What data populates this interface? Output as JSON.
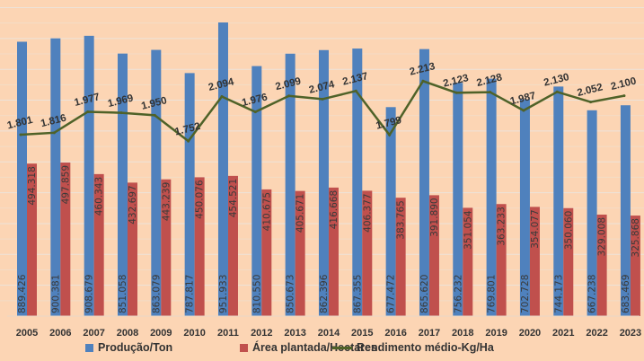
{
  "chart_data": {
    "type": "bar",
    "title": "",
    "categories": [
      "2005",
      "2006",
      "2007",
      "2008",
      "2009",
      "2010",
      "2011",
      "2012",
      "2013",
      "2014",
      "2015",
      "2016",
      "2017",
      "2018",
      "2019",
      "2020",
      "2021",
      "2022",
      "2023"
    ],
    "series": [
      {
        "name": "Produção/Ton",
        "type": "bar",
        "color": "#4f81bd",
        "labels": [
          "889.426",
          "900.381",
          "908.679",
          "851.058",
          "863.079",
          "787.817",
          "951.933",
          "810.550",
          "850.673",
          "862.396",
          "867.355",
          "677.472",
          "865.620",
          "756.232",
          "769.801",
          "702.728",
          "744.173",
          "667.238",
          "683.469"
        ],
        "values": [
          889.426,
          900.381,
          908.679,
          851.058,
          863.079,
          787.817,
          951.933,
          810.55,
          850.673,
          862.396,
          867.355,
          677.472,
          865.62,
          756.232,
          769.801,
          702.728,
          744.173,
          667.238,
          683.469
        ]
      },
      {
        "name": "Área plantada/Hectares",
        "type": "bar",
        "color": "#c0504d",
        "labels": [
          "494.318",
          "497.859",
          "460.343",
          "432.697",
          "443.239",
          "450.076",
          "454.521",
          "410.675",
          "405.671",
          "416.668",
          "406.377",
          "383.765",
          "391.890",
          "351.054",
          "363.233",
          "354.077",
          "350.060",
          "329.008",
          "325.868"
        ],
        "values": [
          494.318,
          497.859,
          460.343,
          432.697,
          443.239,
          450.076,
          454.521,
          410.675,
          405.671,
          416.668,
          406.377,
          383.765,
          391.89,
          351.054,
          363.233,
          354.077,
          350.06,
          329.008,
          325.868
        ]
      },
      {
        "name": "Rendimento médio-Kg/Ha",
        "type": "line",
        "axis": "secondary",
        "color": "#4f6228",
        "labels": [
          "1.801",
          "1.816",
          "1.977",
          "1.969",
          "1.950",
          "1.752",
          "2.094",
          "1.976",
          "2.099",
          "2.074",
          "2.137",
          "1.799",
          "2.213",
          "2.123",
          "2.128",
          "1.987",
          "2.130",
          "2.052",
          "2.100"
        ],
        "values": [
          1801,
          1816,
          1977,
          1969,
          1950,
          1752,
          2094,
          1976,
          2099,
          2074,
          2137,
          1799,
          2213,
          2123,
          2128,
          1987,
          2130,
          2052,
          2100
        ]
      }
    ],
    "legend": "bottom",
    "grid": true
  }
}
